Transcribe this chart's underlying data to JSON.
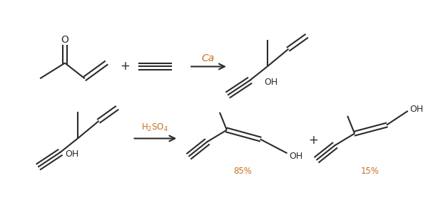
{
  "background_color": "#ffffff",
  "fig_width": 6.0,
  "fig_height": 2.88,
  "dpi": 100,
  "text_color": "#2b2b2b",
  "label_color_ca": "#c87020",
  "label_color_h2so4": "#c87020",
  "label_color_pct": "#c87020",
  "ca_label": "Ca",
  "h2so4_label": "H$_2$SO$_4$",
  "percent85": "85%",
  "percent15": "15%"
}
